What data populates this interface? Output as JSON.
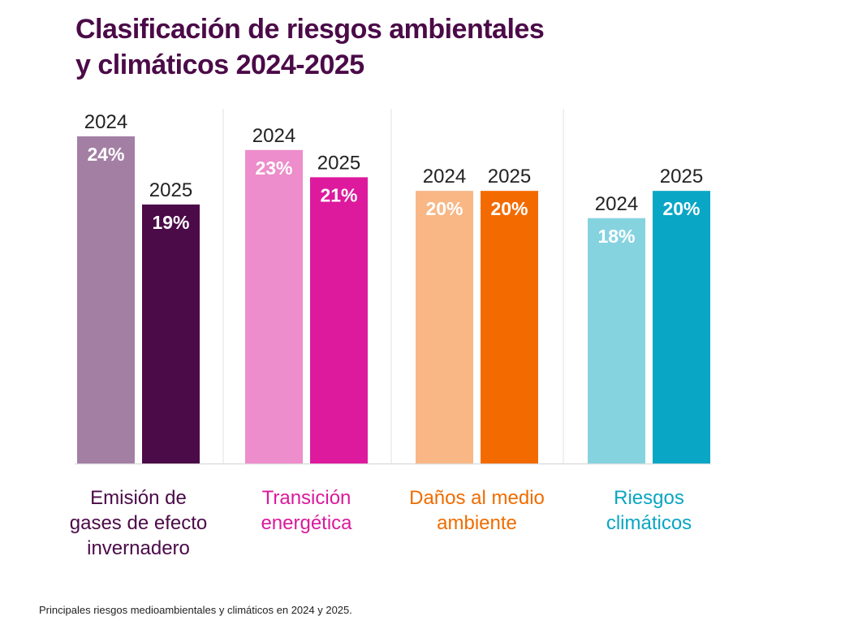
{
  "title": {
    "line1": "Clasificación de riesgos ambientales",
    "line2": "y climáticos 2024-2025"
  },
  "footnote": "Principales riesgos medioambientales y climáticos en 2024 y 2025.",
  "chart_data": {
    "type": "bar",
    "title": "Clasificación de riesgos ambientales y climáticos 2024-2025",
    "xlabel": "",
    "ylabel": "",
    "ylim": [
      0,
      24
    ],
    "grid": false,
    "legend": "none",
    "categories": [
      {
        "lines": [
          "Emisión de",
          "gases de efecto",
          "invernadero"
        ],
        "label_color": "#4b0a48",
        "bars": [
          {
            "year": "2024",
            "value": 24,
            "label": "24%",
            "color": "#a37fa4",
            "label_text_color": "#ffffff"
          },
          {
            "year": "2025",
            "value": 19,
            "label": "19%",
            "color": "#4b0a48",
            "label_text_color": "#ffffff"
          }
        ]
      },
      {
        "lines": [
          "Transición",
          "energética"
        ],
        "label_color": "#d91a9c",
        "bars": [
          {
            "year": "2024",
            "value": 23,
            "label": "23%",
            "color": "#ed8dcb",
            "label_text_color": "#ffffff"
          },
          {
            "year": "2025",
            "value": 21,
            "label": "21%",
            "color": "#dd1a9d",
            "label_text_color": "#ffffff"
          }
        ]
      },
      {
        "lines": [
          "Daños al medio",
          "ambiente"
        ],
        "label_color": "#ef6c00",
        "bars": [
          {
            "year": "2024",
            "value": 20,
            "label": "20%",
            "color": "#f8b785",
            "label_text_color": "#ffffff"
          },
          {
            "year": "2025",
            "value": 20,
            "label": "20%",
            "color": "#f36b00",
            "label_text_color": "#ffffff"
          }
        ]
      },
      {
        "lines": [
          "Riesgos",
          "climáticos"
        ],
        "label_color": "#0aa5c3",
        "bars": [
          {
            "year": "2024",
            "value": 18,
            "label": "18%",
            "color": "#86d3e0",
            "label_text_color": "#ffffff"
          },
          {
            "year": "2025",
            "value": 20,
            "label": "20%",
            "color": "#0aa6c6",
            "label_text_color": "#ffffff"
          }
        ]
      }
    ],
    "colors": {
      "baseline": "#dddddd",
      "divider": "#e2e2e2",
      "year_label": "#222222"
    }
  }
}
